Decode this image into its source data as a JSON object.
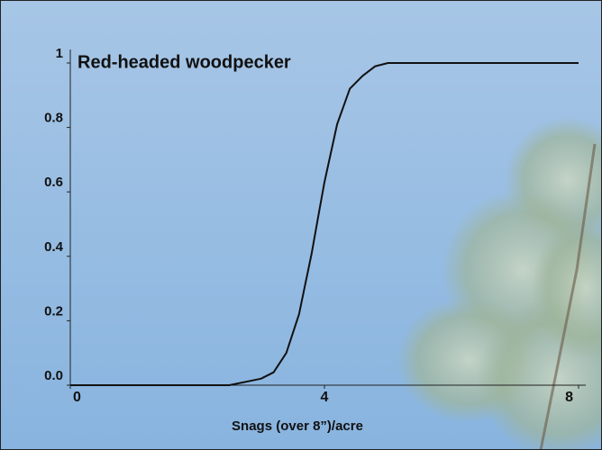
{
  "chart_data": {
    "type": "line",
    "title": "Red-headed woodpecker",
    "x_label": "Snags (over 8”)/acre",
    "x": [
      0,
      1,
      2,
      2.5,
      3,
      3.2,
      3.4,
      3.6,
      3.8,
      3.9,
      4,
      4.2,
      4.4,
      4.6,
      4.8,
      5,
      5.5,
      6,
      7,
      8
    ],
    "values": [
      0,
      0,
      0,
      0,
      0.02,
      0.04,
      0.1,
      0.22,
      0.41,
      0.52,
      0.63,
      0.81,
      0.92,
      0.96,
      0.99,
      1,
      1,
      1,
      1,
      1
    ],
    "color": "#111111",
    "xlim": [
      0,
      8.2
    ],
    "ylim": [
      0,
      1.05
    ],
    "xticks": [
      0,
      4,
      8
    ],
    "yticks": [
      {
        "value": 0,
        "label": "0.0"
      },
      0.2,
      0.4,
      0.6,
      0.8,
      1
    ]
  }
}
